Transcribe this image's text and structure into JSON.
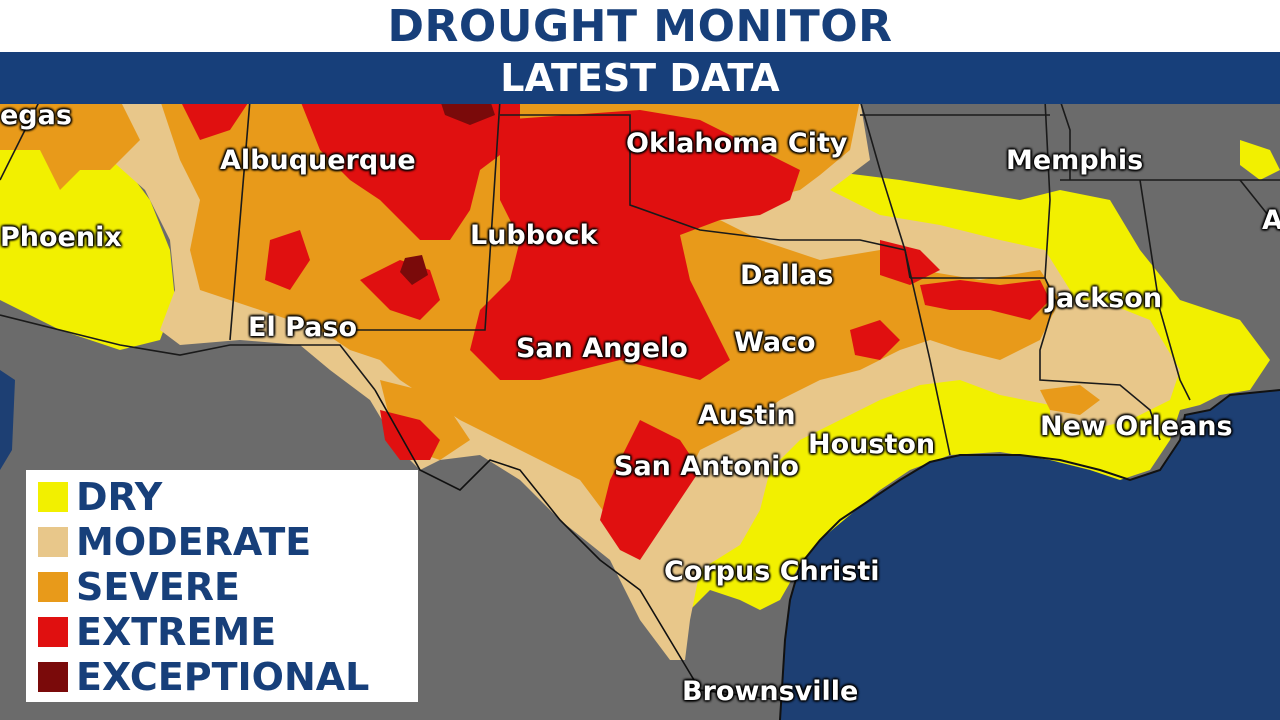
{
  "header": {
    "title": "DROUGHT MONITOR",
    "subtitle": "LATEST DATA"
  },
  "colors": {
    "title_text": "#173f7a",
    "subtitle_bar": "#173f7a",
    "land_none": "#6b6b6b",
    "water": "#1d3f73",
    "dry": "#f2f000",
    "moderate": "#e8c78a",
    "severe": "#e89a1a",
    "extreme": "#e01010",
    "exceptional": "#7a0a0a"
  },
  "legend": [
    {
      "label": "DRY",
      "color": "#f2f000"
    },
    {
      "label": "MODERATE",
      "color": "#e8c78a"
    },
    {
      "label": "SEVERE",
      "color": "#e89a1a"
    },
    {
      "label": "EXTREME",
      "color": "#e01010"
    },
    {
      "label": "EXCEPTIONAL",
      "color": "#7a0a0a"
    }
  ],
  "cities": {
    "vegas": "egas",
    "albuquerque": "Albuquerque",
    "oklahoma_city": "Oklahoma City",
    "memphis": "Memphis",
    "phoenix": "Phoenix",
    "lubbock": "Lubbock",
    "dallas": "Dallas",
    "jackson": "Jackson",
    "el_paso": "El Paso",
    "san_angelo": "San Angelo",
    "waco": "Waco",
    "austin": "Austin",
    "houston": "Houston",
    "new_orleans": "New Orleans",
    "san_antonio": "San Antonio",
    "corpus_christi": "Corpus Christi",
    "brownsville": "Brownsville",
    "cut_off_right": "A"
  }
}
